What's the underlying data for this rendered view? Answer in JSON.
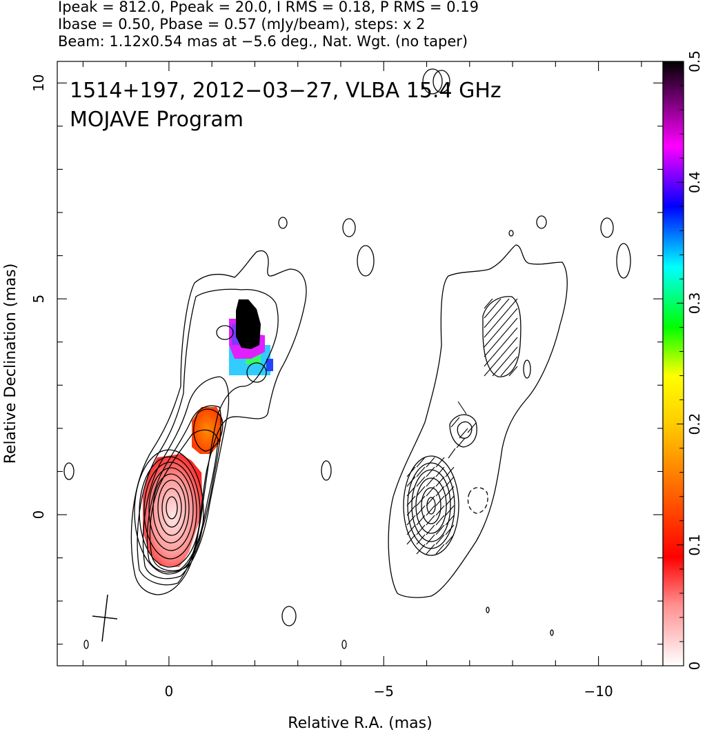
{
  "header": {
    "line1": "Ipeak = 812.0, Ppeak = 20.0, I RMS = 0.18, P RMS = 0.19",
    "line2": "Ibase = 0.50, Pbase = 0.57 (mJy/beam), steps: x 2",
    "line3": "Beam: 1.12x0.54 mas at −5.6 deg., Nat. Wgt. (no taper)"
  },
  "chart_data": [
    {
      "type": "heatmap",
      "panel": "total-intensity-contours-with-fractional-polarization",
      "title": "1514+197, 2012−03−27, VLBA 15.4 GHz",
      "subtitle": "MOJAVE Program",
      "xlabel": "Relative R.A. (mas)",
      "ylabel": "Relative Declination (mas)",
      "xlim": [
        2.6,
        -11.5
      ],
      "ylim": [
        -3.5,
        10.5
      ],
      "x_ticks": [
        {
          "value": 0,
          "label": "0"
        },
        {
          "value": -5,
          "label": "−5"
        },
        {
          "value": -10,
          "label": "−10"
        }
      ],
      "y_ticks": [
        {
          "value": 0,
          "label": "0"
        },
        {
          "value": 5,
          "label": "5"
        },
        {
          "value": 10,
          "label": "10"
        }
      ],
      "core_position": [
        0,
        0
      ],
      "components": [
        {
          "x": 0.0,
          "y": 0.0,
          "fractional_polarization": 0.08
        },
        {
          "x": -0.85,
          "y": 2.0,
          "fractional_polarization": 0.12
        },
        {
          "x": -1.85,
          "y": 4.4,
          "fractional_polarization": 0.5
        }
      ],
      "beam_major_mas": 1.12,
      "beam_minor_mas": 0.54,
      "beam_pa_deg": -5.6
    },
    {
      "type": "heatmap",
      "panel": "polarized-intensity-contours-with-evpa-ticks",
      "xlim": [
        2.6,
        -11.5
      ],
      "ylim": [
        -3.5,
        10.5
      ],
      "peak_position": [
        -6.2,
        0.2
      ],
      "secondary_peak_position": [
        -6.9,
        2.0
      ]
    },
    {
      "type": "colorbar",
      "quantity": "fractional polarization",
      "range": [
        0,
        0.5
      ],
      "tick_labels": [
        "0",
        "0.1",
        "0.2",
        "0.3",
        "0.4",
        "0.5"
      ],
      "colors": [
        "#ffffff",
        "#ff0000",
        "#ff8c00",
        "#ffff00",
        "#00ff00",
        "#00ffff",
        "#0000ff",
        "#ff00ff",
        "#000000"
      ]
    }
  ]
}
